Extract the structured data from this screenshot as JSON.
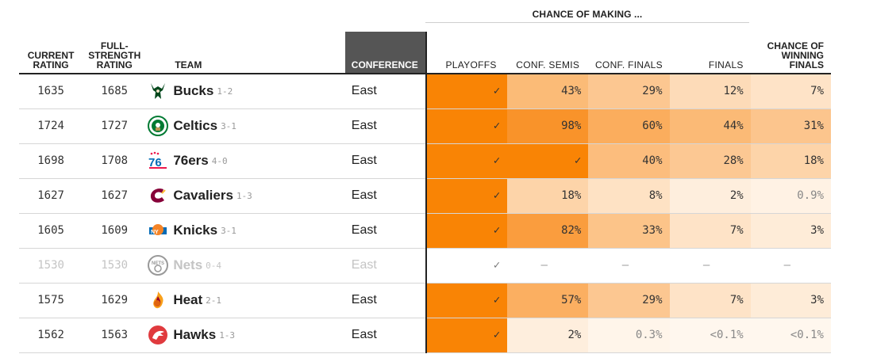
{
  "header": {
    "making_label": "CHANCE OF MAKING ...",
    "current_rating": "CURRENT RATING",
    "full_strength_rating": "FULL-STRENGTH RATING",
    "team": "TEAM",
    "conference": "CONFERENCE",
    "playoffs": "PLAYOFFS",
    "conf_semis": "CONF. SEMIS",
    "conf_finals": "CONF. FINALS",
    "finals": "FINALS",
    "win_finals": "CHANCE OF WINNING FINALS"
  },
  "colors": {
    "clinched": "#f98405",
    "text": "#222222",
    "conference_header_bg": "#555555"
  },
  "rows": [
    {
      "current": "1635",
      "full": "1685",
      "team": "Bucks",
      "record": "1-2",
      "logo": "bucks-logo-icon",
      "conference": "East",
      "dim": false,
      "cells": [
        {
          "text": "✓",
          "level": 1
        },
        {
          "text": "43%",
          "level": 0.43
        },
        {
          "text": "29%",
          "level": 0.29
        },
        {
          "text": "12%",
          "level": 0.12
        },
        {
          "text": "7%",
          "level": 0.07
        }
      ]
    },
    {
      "current": "1724",
      "full": "1727",
      "team": "Celtics",
      "record": "3-1",
      "logo": "celtics-logo-icon",
      "conference": "East",
      "dim": false,
      "cells": [
        {
          "text": "✓",
          "level": 1
        },
        {
          "text": "98%",
          "level": 0.98
        },
        {
          "text": "60%",
          "level": 0.6
        },
        {
          "text": "44%",
          "level": 0.44
        },
        {
          "text": "31%",
          "level": 0.31
        }
      ]
    },
    {
      "current": "1698",
      "full": "1708",
      "team": "76ers",
      "record": "4-0",
      "logo": "76ers-logo-icon",
      "conference": "East",
      "dim": false,
      "cells": [
        {
          "text": "✓",
          "level": 1
        },
        {
          "text": "✓",
          "level": 1
        },
        {
          "text": "40%",
          "level": 0.4
        },
        {
          "text": "28%",
          "level": 0.28
        },
        {
          "text": "18%",
          "level": 0.18
        }
      ]
    },
    {
      "current": "1627",
      "full": "1627",
      "team": "Cavaliers",
      "record": "1-3",
      "logo": "cavaliers-logo-icon",
      "conference": "East",
      "dim": false,
      "cells": [
        {
          "text": "✓",
          "level": 1
        },
        {
          "text": "18%",
          "level": 0.18
        },
        {
          "text": "8%",
          "level": 0.08
        },
        {
          "text": "2%",
          "level": 0.02
        },
        {
          "text": "0.9%",
          "level": 0.009
        }
      ]
    },
    {
      "current": "1605",
      "full": "1609",
      "team": "Knicks",
      "record": "3-1",
      "logo": "knicks-logo-icon",
      "conference": "East",
      "dim": false,
      "cells": [
        {
          "text": "✓",
          "level": 1
        },
        {
          "text": "82%",
          "level": 0.82
        },
        {
          "text": "33%",
          "level": 0.33
        },
        {
          "text": "7%",
          "level": 0.07
        },
        {
          "text": "3%",
          "level": 0.03
        }
      ]
    },
    {
      "current": "1530",
      "full": "1530",
      "team": "Nets",
      "record": "0-4",
      "logo": "nets-logo-icon",
      "conference": "East",
      "dim": true,
      "cells": [
        {
          "text": "✓",
          "level": 0
        },
        {
          "text": "–",
          "level": 0
        },
        {
          "text": "–",
          "level": 0
        },
        {
          "text": "–",
          "level": 0
        },
        {
          "text": "–",
          "level": 0
        }
      ]
    },
    {
      "current": "1575",
      "full": "1629",
      "team": "Heat",
      "record": "2-1",
      "logo": "heat-logo-icon",
      "conference": "East",
      "dim": false,
      "cells": [
        {
          "text": "✓",
          "level": 1
        },
        {
          "text": "57%",
          "level": 0.57
        },
        {
          "text": "29%",
          "level": 0.29
        },
        {
          "text": "7%",
          "level": 0.07
        },
        {
          "text": "3%",
          "level": 0.03
        }
      ]
    },
    {
      "current": "1562",
      "full": "1563",
      "team": "Hawks",
      "record": "1-3",
      "logo": "hawks-logo-icon",
      "conference": "East",
      "dim": false,
      "cells": [
        {
          "text": "✓",
          "level": 1
        },
        {
          "text": "2%",
          "level": 0.02
        },
        {
          "text": "0.3%",
          "level": 0.003
        },
        {
          "text": "<0.1%",
          "level": 0.0005
        },
        {
          "text": "<0.1%",
          "level": 0.0005
        }
      ]
    }
  ]
}
